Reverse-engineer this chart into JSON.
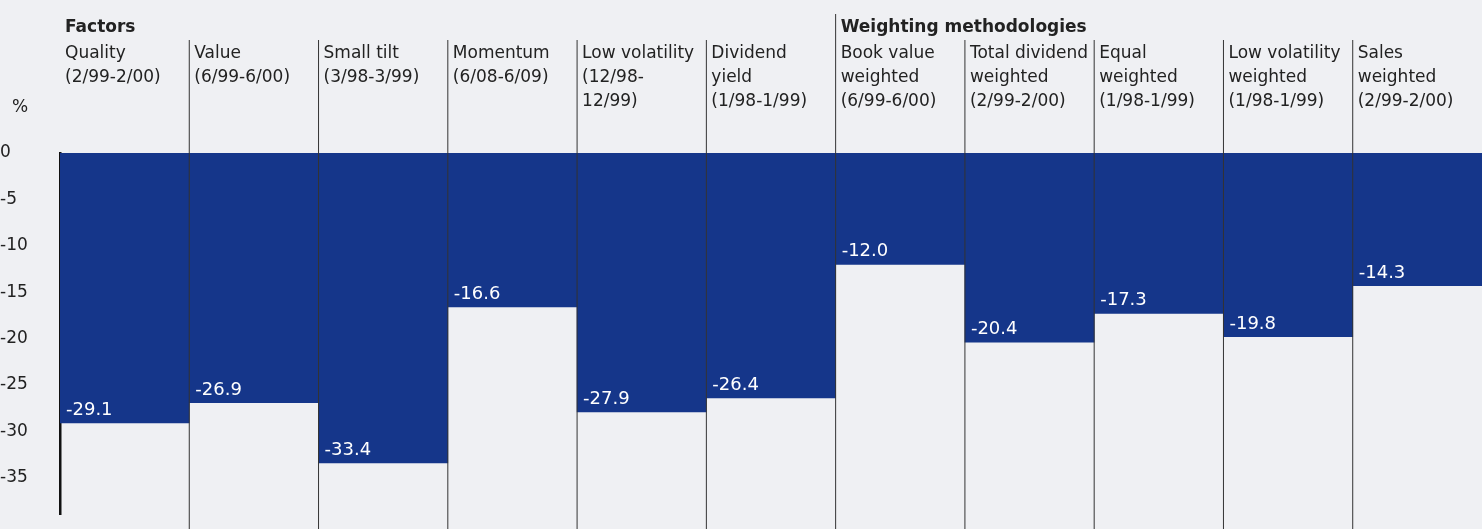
{
  "chart_data": {
    "type": "bar",
    "ylabel": "%",
    "categories": [
      "Quality\n(2/99-2/00)",
      "Value\n(6/99-6/00)",
      "Small tilt\n(3/98-3/99)",
      "Momentum\n(6/08-6/09)",
      "Low volatility\n(12/98-\n12/99)",
      "Dividend\nyield\n(1/98-1/99)",
      "Book value\nweighted\n(6/99-6/00)",
      "Total dividend\nweighted\n(2/99-2/00)",
      "Equal\nweighted\n(1/98-1/99)",
      "Low volatility\nweighted\n(1/98-1/99)",
      "Sales\nweighted\n(2/99-2/00)"
    ],
    "values": [
      -29.1,
      -26.9,
      -33.4,
      -16.6,
      -27.9,
      -26.4,
      -12.0,
      -20.4,
      -17.3,
      -19.8,
      -14.3
    ],
    "value_labels": [
      "-29.1",
      "-26.9",
      "-33.4",
      "-16.6",
      "-27.9",
      "-26.4",
      "-12.0",
      "-20.4",
      "-17.3",
      "-19.8",
      "-14.3"
    ],
    "color": "#15368a",
    "ylim": [
      -39,
      0
    ],
    "yticks": [
      0,
      -5,
      -10,
      -15,
      -20,
      -25,
      -30,
      -35
    ],
    "annotations": [
      "Factors",
      "Weighting methodologies"
    ],
    "grid": false,
    "legend": false
  }
}
